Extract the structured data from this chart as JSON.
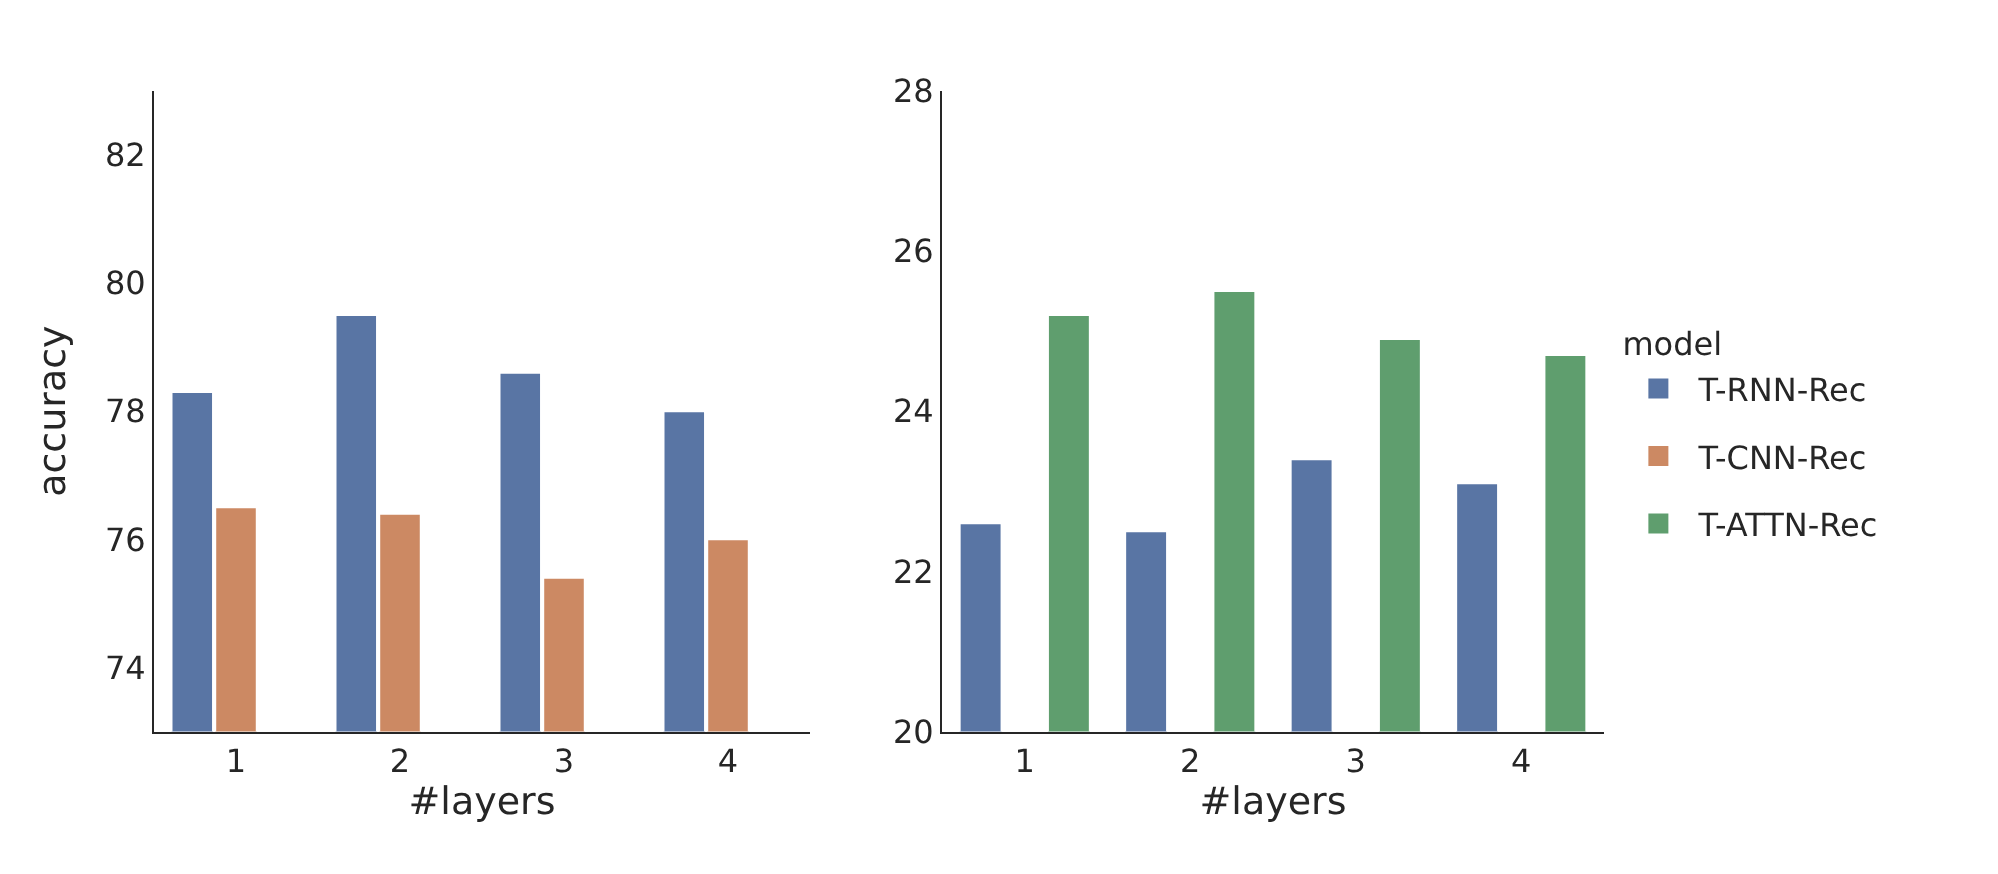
{
  "chart_data": [
    {
      "type": "bar",
      "xlabel": "#layers",
      "ylabel": "accuracy",
      "categories": [
        "1",
        "2",
        "3",
        "4"
      ],
      "ylim": [
        73,
        83
      ],
      "yticks": [
        74,
        76,
        78,
        80,
        82
      ],
      "series": [
        {
          "color": "#5975a4",
          "values": [
            78.3,
            79.5,
            78.6,
            78.0
          ]
        },
        {
          "color": "#cc8963",
          "values": [
            76.5,
            76.4,
            75.4,
            76.0
          ]
        },
        {
          "color": "#5f9e6e",
          "values": [
            null,
            null,
            null,
            null
          ]
        }
      ]
    },
    {
      "type": "bar",
      "xlabel": "#layers",
      "categories": [
        "1",
        "2",
        "3",
        "4"
      ],
      "ylim": [
        20,
        28
      ],
      "yticks": [
        20,
        22,
        24,
        26,
        28
      ],
      "legend": "right",
      "legend_title": "model",
      "series": [
        {
          "name": "T-RNN-Rec",
          "color": "#5975a4",
          "values": [
            22.6,
            22.5,
            23.4,
            23.1
          ]
        },
        {
          "name": "T-CNN-Rec",
          "color": "#cc8963",
          "values": [
            null,
            null,
            null,
            null
          ]
        },
        {
          "name": "T-ATTN-Rec",
          "color": "#5f9e6e",
          "values": [
            25.2,
            25.5,
            24.9,
            24.7
          ]
        }
      ]
    }
  ]
}
